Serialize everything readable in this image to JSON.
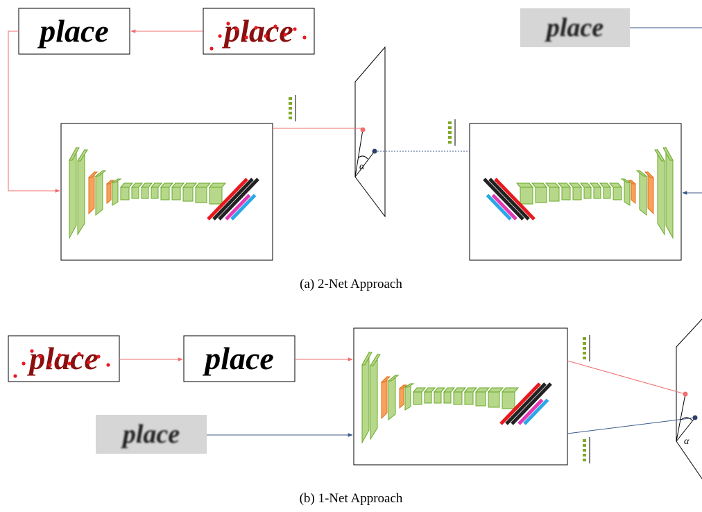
{
  "panel_a": {
    "caption": "(a) 2-Net Approach",
    "words": [
      "place",
      "place",
      "place"
    ],
    "angle": "α"
  },
  "panel_b": {
    "caption": "(b) 1-Net Approach",
    "words": [
      "place",
      "place",
      "place"
    ],
    "angle": "α"
  }
}
